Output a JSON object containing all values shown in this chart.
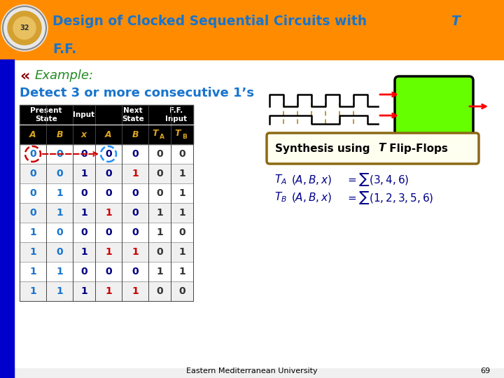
{
  "bg_color": "#f0f0f0",
  "header_bg": "#FF8C00",
  "left_bar_color": "#0000CD",
  "title_text1": "Design of Clocked Sequential Circuits with ",
  "title_italic": "T",
  "title_text2": "F.F.",
  "title_color": "#1874CD",
  "example_star": "«",
  "example_star_color": "#8B0000",
  "example_text": "Example:",
  "example_color": "#228B22",
  "detect_text": "Detect 3 or more consecutive 1’s",
  "detect_color": "#1874CD",
  "table_header_bg": "#000000",
  "table_header_fg": "#DAA520",
  "table_data": [
    [
      0,
      0,
      0,
      0,
      0,
      0,
      0
    ],
    [
      0,
      0,
      1,
      0,
      1,
      0,
      1
    ],
    [
      0,
      1,
      0,
      0,
      0,
      0,
      1
    ],
    [
      0,
      1,
      1,
      1,
      0,
      1,
      1
    ],
    [
      1,
      0,
      0,
      0,
      0,
      1,
      0
    ],
    [
      1,
      0,
      1,
      1,
      1,
      0,
      1
    ],
    [
      1,
      1,
      0,
      0,
      0,
      1,
      1
    ],
    [
      1,
      1,
      1,
      1,
      1,
      0,
      0
    ]
  ],
  "synthesis_box_color": "#8B6914",
  "formula_color": "#00008B",
  "footer_text": "Eastern Mediterranean University",
  "footer_num": "69",
  "footer_color": "#000000",
  "present_state_color": "#1874CD",
  "x_color": "#000080",
  "next_state_1_color": "#CC0000",
  "next_state_0_color": "#000080",
  "tff_color": "#333333",
  "circle0_color": "#CC0000",
  "circle3_color": "#1E90FF",
  "green_box_color": "#66FF00"
}
